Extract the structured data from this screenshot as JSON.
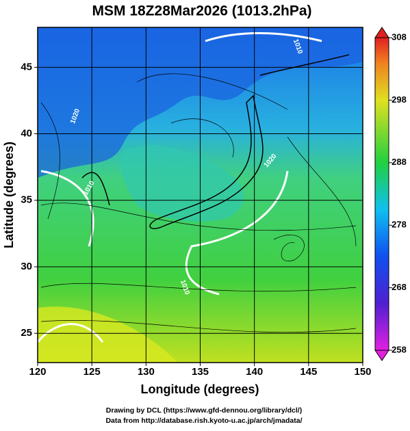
{
  "map": {
    "title": "MSM 18Z28Mar2026 (1013.2hPa)",
    "xlabel": "Longitude (degrees)",
    "ylabel": "Latitude  (degrees)",
    "xlim": [
      120,
      150
    ],
    "ylim": [
      22.8,
      48
    ],
    "xticks": [
      120,
      125,
      130,
      135,
      140,
      145,
      150
    ],
    "yticks": [
      25,
      30,
      35,
      40,
      45
    ],
    "colorbar": {
      "lim": [
        258,
        308
      ],
      "ticks": [
        258,
        268,
        278,
        288,
        298,
        308
      ]
    },
    "contour_labels": [
      "1010",
      "1020",
      "1010",
      "1010",
      "1020"
    ],
    "credits": [
      "Drawing by DCL (https://www.gfd-dennou.org/library/dcl/)",
      "Data from http://database.rish.kyoto-u.ac.jp/arch/jmadata/"
    ]
  }
}
